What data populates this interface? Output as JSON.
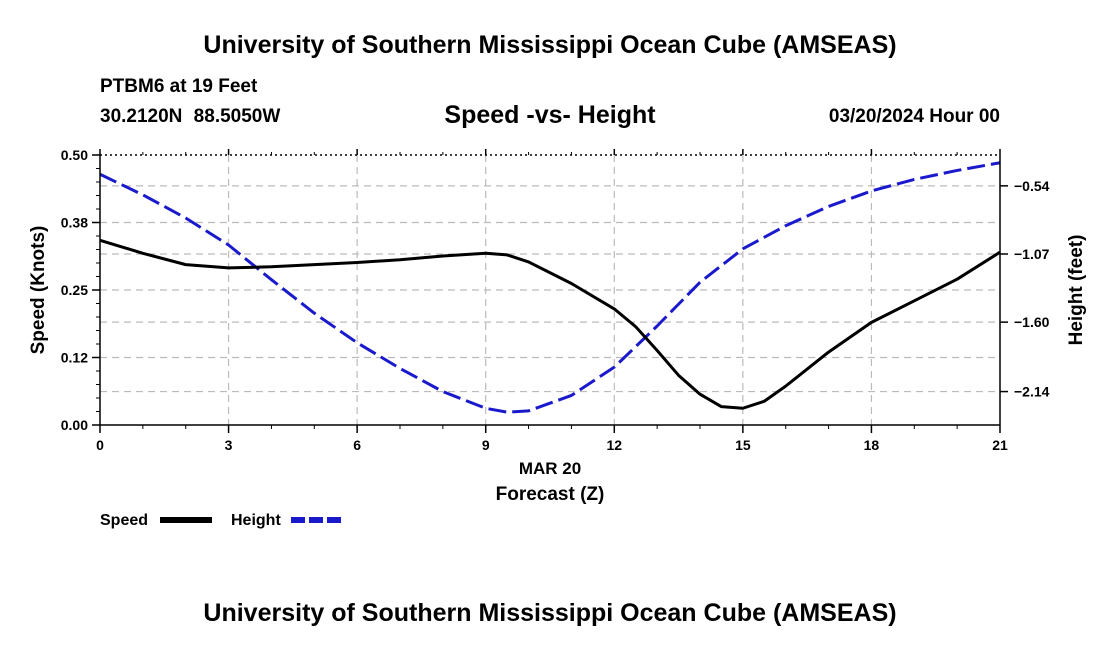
{
  "title": "University of Southern Mississippi Ocean Cube (AMSEAS)",
  "footer_title": "University of Southern Mississippi Ocean Cube (AMSEAS)",
  "station": "PTBM6 at 19 Feet",
  "coordinates": "30.2120N  88.5050W",
  "subtitle": "Speed -vs- Height",
  "datestamp": "03/20/2024 Hour 00",
  "colors": {
    "speed": "#000000",
    "height": "#1a1acc",
    "grid": "#bbbbbb"
  },
  "chart_data": {
    "type": "line",
    "title": "Speed -vs- Height",
    "xlabel": "Forecast (Z)",
    "xlabel_date": "MAR 20",
    "ylabel": "Speed (Knots)",
    "y2label": "Height (feet)",
    "xlim": [
      0,
      21
    ],
    "ylim": [
      0,
      0.5
    ],
    "y2lim": [
      -2.4,
      -0.3
    ],
    "x_ticks": [
      0,
      3,
      6,
      9,
      12,
      15,
      18,
      21
    ],
    "x_tick_labels": [
      "0",
      "3",
      "6",
      "9",
      "12",
      "15",
      "18",
      "21"
    ],
    "y_ticks": [
      0,
      0.125,
      0.25,
      0.375,
      0.5
    ],
    "y_tick_labels": [
      "0.00",
      "0.12",
      "0.25",
      "0.38",
      "0.50"
    ],
    "y2_ticks": [
      -2.14,
      -1.6,
      -1.07,
      -0.54
    ],
    "y2_tick_labels": [
      "−2.14",
      "−1.60",
      "−1.07",
      "−0.54"
    ],
    "grid": true,
    "legend_position": "bottom-left",
    "series": [
      {
        "name": "Speed",
        "axis": "left",
        "style": "solid",
        "x": [
          0,
          1,
          2,
          3,
          4,
          5,
          6,
          7,
          8,
          9,
          9.5,
          10,
          11,
          12,
          12.5,
          13,
          13.5,
          14,
          14.5,
          15,
          15.5,
          16,
          17,
          18,
          19,
          20,
          21
        ],
        "values": [
          0.342,
          0.318,
          0.297,
          0.291,
          0.293,
          0.297,
          0.301,
          0.306,
          0.313,
          0.318,
          0.315,
          0.302,
          0.262,
          0.215,
          0.182,
          0.138,
          0.092,
          0.057,
          0.034,
          0.031,
          0.044,
          0.072,
          0.135,
          0.19,
          0.23,
          0.27,
          0.32
        ]
      },
      {
        "name": "Height",
        "axis": "right",
        "style": "dashed",
        "x": [
          0,
          1,
          2,
          3,
          4,
          5,
          6,
          7,
          8,
          9,
          9.5,
          10,
          11,
          12,
          13,
          14,
          15,
          16,
          17,
          18,
          19,
          20,
          21
        ],
        "values": [
          -0.45,
          -0.61,
          -0.79,
          -1.0,
          -1.27,
          -1.53,
          -1.76,
          -1.96,
          -2.14,
          -2.27,
          -2.3,
          -2.29,
          -2.17,
          -1.95,
          -1.63,
          -1.29,
          -1.03,
          -0.85,
          -0.7,
          -0.58,
          -0.49,
          -0.42,
          -0.36
        ]
      }
    ]
  }
}
